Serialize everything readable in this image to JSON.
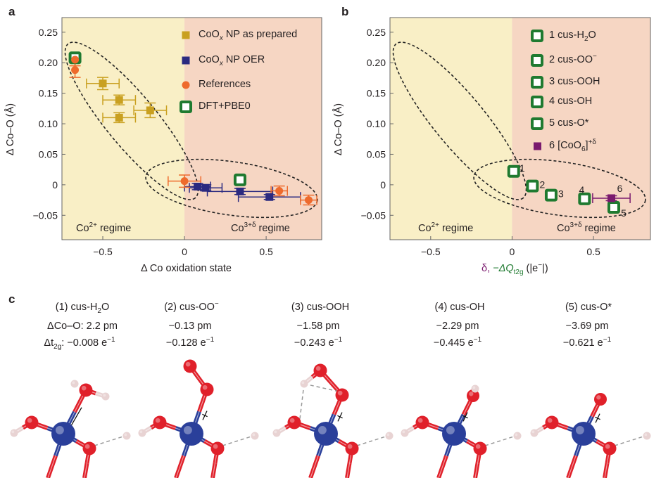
{
  "panel_labels": {
    "a": "a",
    "b": "b",
    "c": "c"
  },
  "colors": {
    "co2_region": "#f9efc6",
    "co3_region": "#f6d6c3",
    "as_prepared": "#c9a020",
    "oer": "#2b2a80",
    "references": "#ee6a2c",
    "dft": "#1f7a30",
    "coo6": "#7a1a6e",
    "delta_label": "#7a1a6e",
    "qt2g_label": "#1f7a30",
    "oxygen": "#e0202a",
    "cobalt": "#2a3f9a",
    "hydrogen": "#e8d3d3"
  },
  "chart_data": [
    {
      "type": "scatter",
      "panel": "a",
      "xlabel": "Δ Co oxidation state",
      "ylabel": "Δ Co–O (Å)",
      "xlim": [
        -0.75,
        0.84
      ],
      "ylim": [
        -0.09,
        0.274
      ],
      "xticks": [
        {
          "v": -0.5,
          "label": "−0.5"
        },
        {
          "v": 0,
          "label": "0"
        },
        {
          "v": 0.5,
          "label": "0.5"
        }
      ],
      "yticks": [
        {
          "v": 0.25,
          "label": "0.25"
        },
        {
          "v": 0.2,
          "label": "0.20"
        },
        {
          "v": 0.15,
          "label": "0.15"
        },
        {
          "v": 0.1,
          "label": "0.10"
        },
        {
          "v": 0.05,
          "label": "0.05"
        },
        {
          "v": 0,
          "label": "0"
        },
        {
          "v": -0.05,
          "label": "−0.05"
        }
      ],
      "grid": false,
      "legend_position": "top-right",
      "regions": [
        {
          "label": "Co",
          "sup": "2+",
          "suffix": " regime",
          "x_range": [
            -0.75,
            0
          ]
        },
        {
          "label": "Co",
          "sup": "3+δ",
          "suffix": " regime",
          "x_range": [
            0,
            0.84
          ]
        }
      ],
      "series": [
        {
          "name": "CoO",
          "name_sub": "x",
          "name_suffix": " NP as prepared",
          "marker": "square",
          "color_key": "as_prepared",
          "points": [
            {
              "x": -0.5,
              "y": 0.166,
              "xerr": 0.1,
              "yerr": 0.01
            },
            {
              "x": -0.4,
              "y": 0.139,
              "xerr": 0.1,
              "yerr": 0.008
            },
            {
              "x": -0.4,
              "y": 0.11,
              "xerr": 0.1,
              "yerr": 0.008
            },
            {
              "x": -0.21,
              "y": 0.122,
              "xerr": 0.1,
              "yerr": 0.012
            }
          ]
        },
        {
          "name": "CoO",
          "name_sub": "x",
          "name_suffix": " NP OER",
          "marker": "square",
          "color_key": "oer",
          "points": [
            {
              "x": 0.08,
              "y": -0.003,
              "xerr": 0.08,
              "yerr": 0.005
            },
            {
              "x": 0.13,
              "y": -0.005,
              "xerr": 0.1,
              "yerr": 0.005
            },
            {
              "x": 0.34,
              "y": -0.011,
              "xerr": 0.2,
              "yerr": 0.005
            },
            {
              "x": 0.52,
              "y": -0.02,
              "xerr": 0.19,
              "yerr": 0.004
            }
          ]
        },
        {
          "name": "References",
          "marker": "circle",
          "color_key": "references",
          "points": [
            {
              "x": -0.67,
              "y": 0.205,
              "xerr": 0.0,
              "yerr": 0.01
            },
            {
              "x": -0.67,
              "y": 0.188,
              "xerr": 0.0,
              "yerr": 0.012
            },
            {
              "x": 0.0,
              "y": 0.006,
              "xerr": 0.1,
              "yerr": 0.01
            },
            {
              "x": 0.58,
              "y": -0.01,
              "xerr": 0.05,
              "yerr": 0.008
            },
            {
              "x": 0.76,
              "y": -0.025,
              "xerr": 0.05,
              "yerr": 0.008
            }
          ]
        },
        {
          "name": "DFT+PBE0",
          "marker": "open-square",
          "color_key": "dft",
          "points": [
            {
              "x": -0.67,
              "y": 0.208
            },
            {
              "x": 0.34,
              "y": 0.008
            }
          ]
        }
      ]
    },
    {
      "type": "scatter",
      "panel": "b",
      "xlabel_parts": {
        "delta": "δ,",
        "q": " −ΔQ",
        "q_sub": "t2g",
        "unit": " (|e",
        "unit_sup": "−",
        "unit_end": "|)"
      },
      "ylabel": "Δ Co–O (Å)",
      "xlim": [
        -0.75,
        0.85
      ],
      "ylim": [
        -0.09,
        0.274
      ],
      "xticks": [
        {
          "v": -0.5,
          "label": "−0.5"
        },
        {
          "v": 0,
          "label": "0"
        },
        {
          "v": 0.5,
          "label": "0.5"
        }
      ],
      "yticks": [
        {
          "v": 0.25,
          "label": "0.25"
        },
        {
          "v": 0.2,
          "label": "0.20"
        },
        {
          "v": 0.15,
          "label": "0.15"
        },
        {
          "v": 0.1,
          "label": "0.10"
        },
        {
          "v": 0.05,
          "label": "0.05"
        },
        {
          "v": 0,
          "label": "0"
        },
        {
          "v": -0.05,
          "label": "−0.05"
        }
      ],
      "grid": false,
      "legend_position": "top-right",
      "regions": [
        {
          "label": "Co",
          "sup": "2+",
          "suffix": " regime"
        },
        {
          "label": "Co",
          "sup": "3+δ",
          "suffix": " regime"
        }
      ],
      "legend": [
        {
          "text": "1 cus-H",
          "sub": "2",
          "post": "O",
          "marker": "open-square"
        },
        {
          "text": "2 cus-OO",
          "sup": "−",
          "marker": "open-square"
        },
        {
          "text": "3 cus-OOH",
          "marker": "open-square"
        },
        {
          "text": "4 cus-OH",
          "marker": "open-square"
        },
        {
          "text": "5 cus-O*",
          "marker": "open-square"
        },
        {
          "text": "6 [CoO",
          "sub": "6",
          "post": "]",
          "sup2": "+δ",
          "marker": "square"
        }
      ],
      "points": [
        {
          "label": "1",
          "x": 0.01,
          "y": 0.022,
          "marker": "open-square"
        },
        {
          "label": "2",
          "x": 0.125,
          "y": -0.002,
          "marker": "open-square"
        },
        {
          "label": "3",
          "x": 0.24,
          "y": -0.017,
          "marker": "open-square"
        },
        {
          "label": "4",
          "x": 0.445,
          "y": -0.023,
          "marker": "open-square"
        },
        {
          "label": "5",
          "x": 0.625,
          "y": -0.037,
          "marker": "open-square"
        },
        {
          "label": "6",
          "x": 0.61,
          "y": -0.022,
          "xerr": 0.115,
          "yerr": 0.004,
          "marker": "square"
        }
      ]
    }
  ],
  "structures": [
    {
      "title": "(1) cus-H",
      "title_sub": "2",
      "title_post": "O",
      "dco_prefix": "ΔCo–O: ",
      "dco": "2.2 pm",
      "dt_prefix": "Δt",
      "dt_sub": "2g",
      "dt_colon": ": ",
      "dt": "−0.008 e",
      "dt_sup": "−1",
      "ligand": "H2O"
    },
    {
      "title": "(2) cus-OO",
      "title_sup": "−",
      "dco": "−0.13 pm",
      "dt": "−0.128 e",
      "dt_sup": "−1",
      "ligand": "OO"
    },
    {
      "title": "(3) cus-OOH",
      "dco": "−1.58 pm",
      "dt": "−0.243 e",
      "dt_sup": "−1",
      "ligand": "OOH"
    },
    {
      "title": "(4) cus-OH",
      "dco": "−2.29 pm",
      "dt": "−0.445 e",
      "dt_sup": "−1",
      "ligand": "OH"
    },
    {
      "title": "(5) cus-O*",
      "dco": "−3.69 pm",
      "dt": "−0.621 e",
      "dt_sup": "−1",
      "ligand": "O"
    }
  ]
}
